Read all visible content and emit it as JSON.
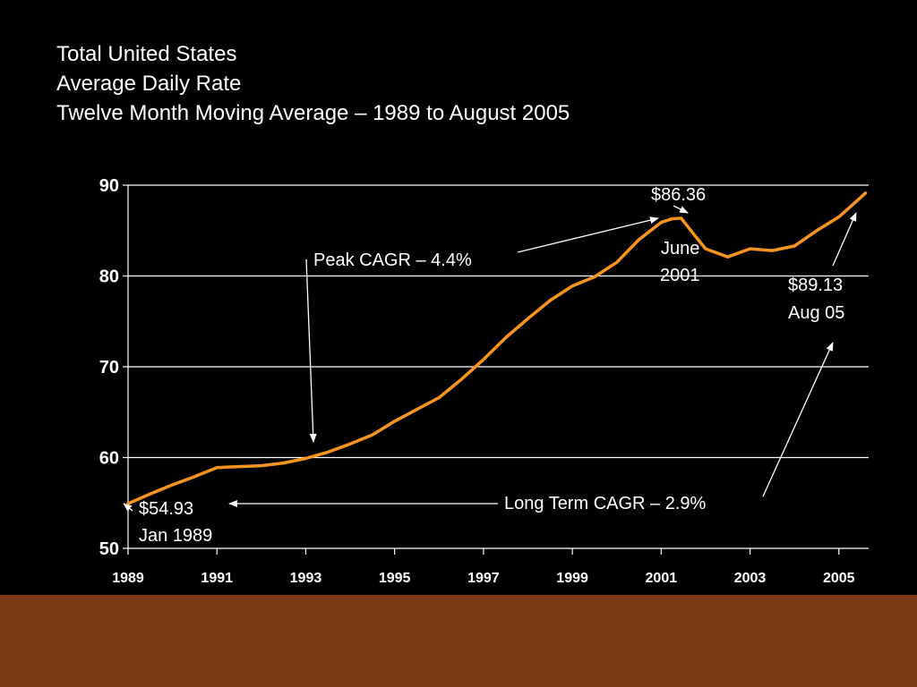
{
  "title_lines": [
    "Total United States",
    "Average Daily Rate",
    "Twelve Month Moving Average – 1989 to August 2005"
  ],
  "colors": {
    "background": "#000000",
    "line": "#f7941d",
    "grid": "#ffffff",
    "text": "#ffffff",
    "footer_band": "#7a3b16"
  },
  "chart_data": {
    "type": "line",
    "title": "Total United States Average Daily Rate Twelve Month Moving Average – 1989 to August 2005",
    "xlabel": "",
    "ylabel": "",
    "xlim": [
      1989,
      2005.67
    ],
    "ylim": [
      50,
      90
    ],
    "yticks": [
      "50",
      "60",
      "70",
      "80",
      "90"
    ],
    "xticks": [
      "1989",
      "1991",
      "1993",
      "1995",
      "1997",
      "1999",
      "2001",
      "2003",
      "2005"
    ],
    "grid": "horizontal",
    "series": [
      {
        "name": "",
        "x": [
          1989.0,
          1989.5,
          1990.0,
          1990.5,
          1991.0,
          1991.5,
          1992.0,
          1992.5,
          1993.0,
          1993.5,
          1994.0,
          1994.5,
          1995.0,
          1995.5,
          1996.0,
          1996.5,
          1997.0,
          1997.5,
          1998.0,
          1998.5,
          1999.0,
          1999.5,
          2000.0,
          2000.5,
          2001.0,
          2001.25,
          2001.45,
          2001.75,
          2002.0,
          2002.5,
          2003.0,
          2003.5,
          2004.0,
          2004.5,
          2005.0,
          2005.3,
          2005.6
        ],
        "y": [
          54.93,
          56.0,
          57.0,
          57.9,
          58.9,
          59.0,
          59.1,
          59.4,
          59.9,
          60.6,
          61.5,
          62.5,
          64.0,
          65.3,
          66.6,
          68.6,
          70.8,
          73.2,
          75.3,
          77.3,
          78.9,
          79.9,
          81.5,
          84.0,
          85.9,
          86.3,
          86.36,
          84.5,
          83.0,
          82.1,
          83.0,
          82.8,
          83.3,
          85.0,
          86.5,
          87.8,
          89.13
        ]
      }
    ],
    "annotations": {
      "peak_cagr": "Peak CAGR – 4.4%",
      "long_term_cagr": "Long Term CAGR – 2.9%",
      "start_value": "$54.93",
      "start_date": "Jan 1989",
      "peak_value": "$86.36",
      "peak_date_line1": "June",
      "peak_date_line2": "2001",
      "end_value": "$89.13",
      "end_date": "Aug 05"
    }
  }
}
